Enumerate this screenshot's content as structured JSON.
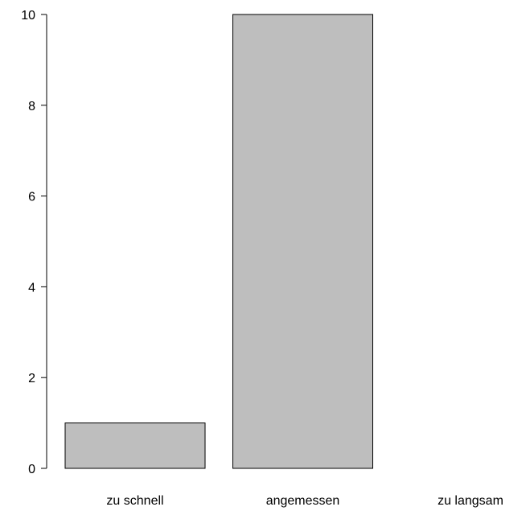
{
  "chart_data": {
    "type": "bar",
    "categories": [
      "zu schnell",
      "angemessen",
      "zu langsam"
    ],
    "values": [
      1,
      10,
      0
    ],
    "title": "",
    "xlabel": "",
    "ylabel": "",
    "ylim": [
      0,
      10
    ],
    "yticks": [
      "0",
      "2",
      "4",
      "6",
      "8",
      "10"
    ],
    "bar_fill": "#bebebe",
    "bar_stroke": "#000000",
    "grid": false,
    "legend": "none"
  }
}
